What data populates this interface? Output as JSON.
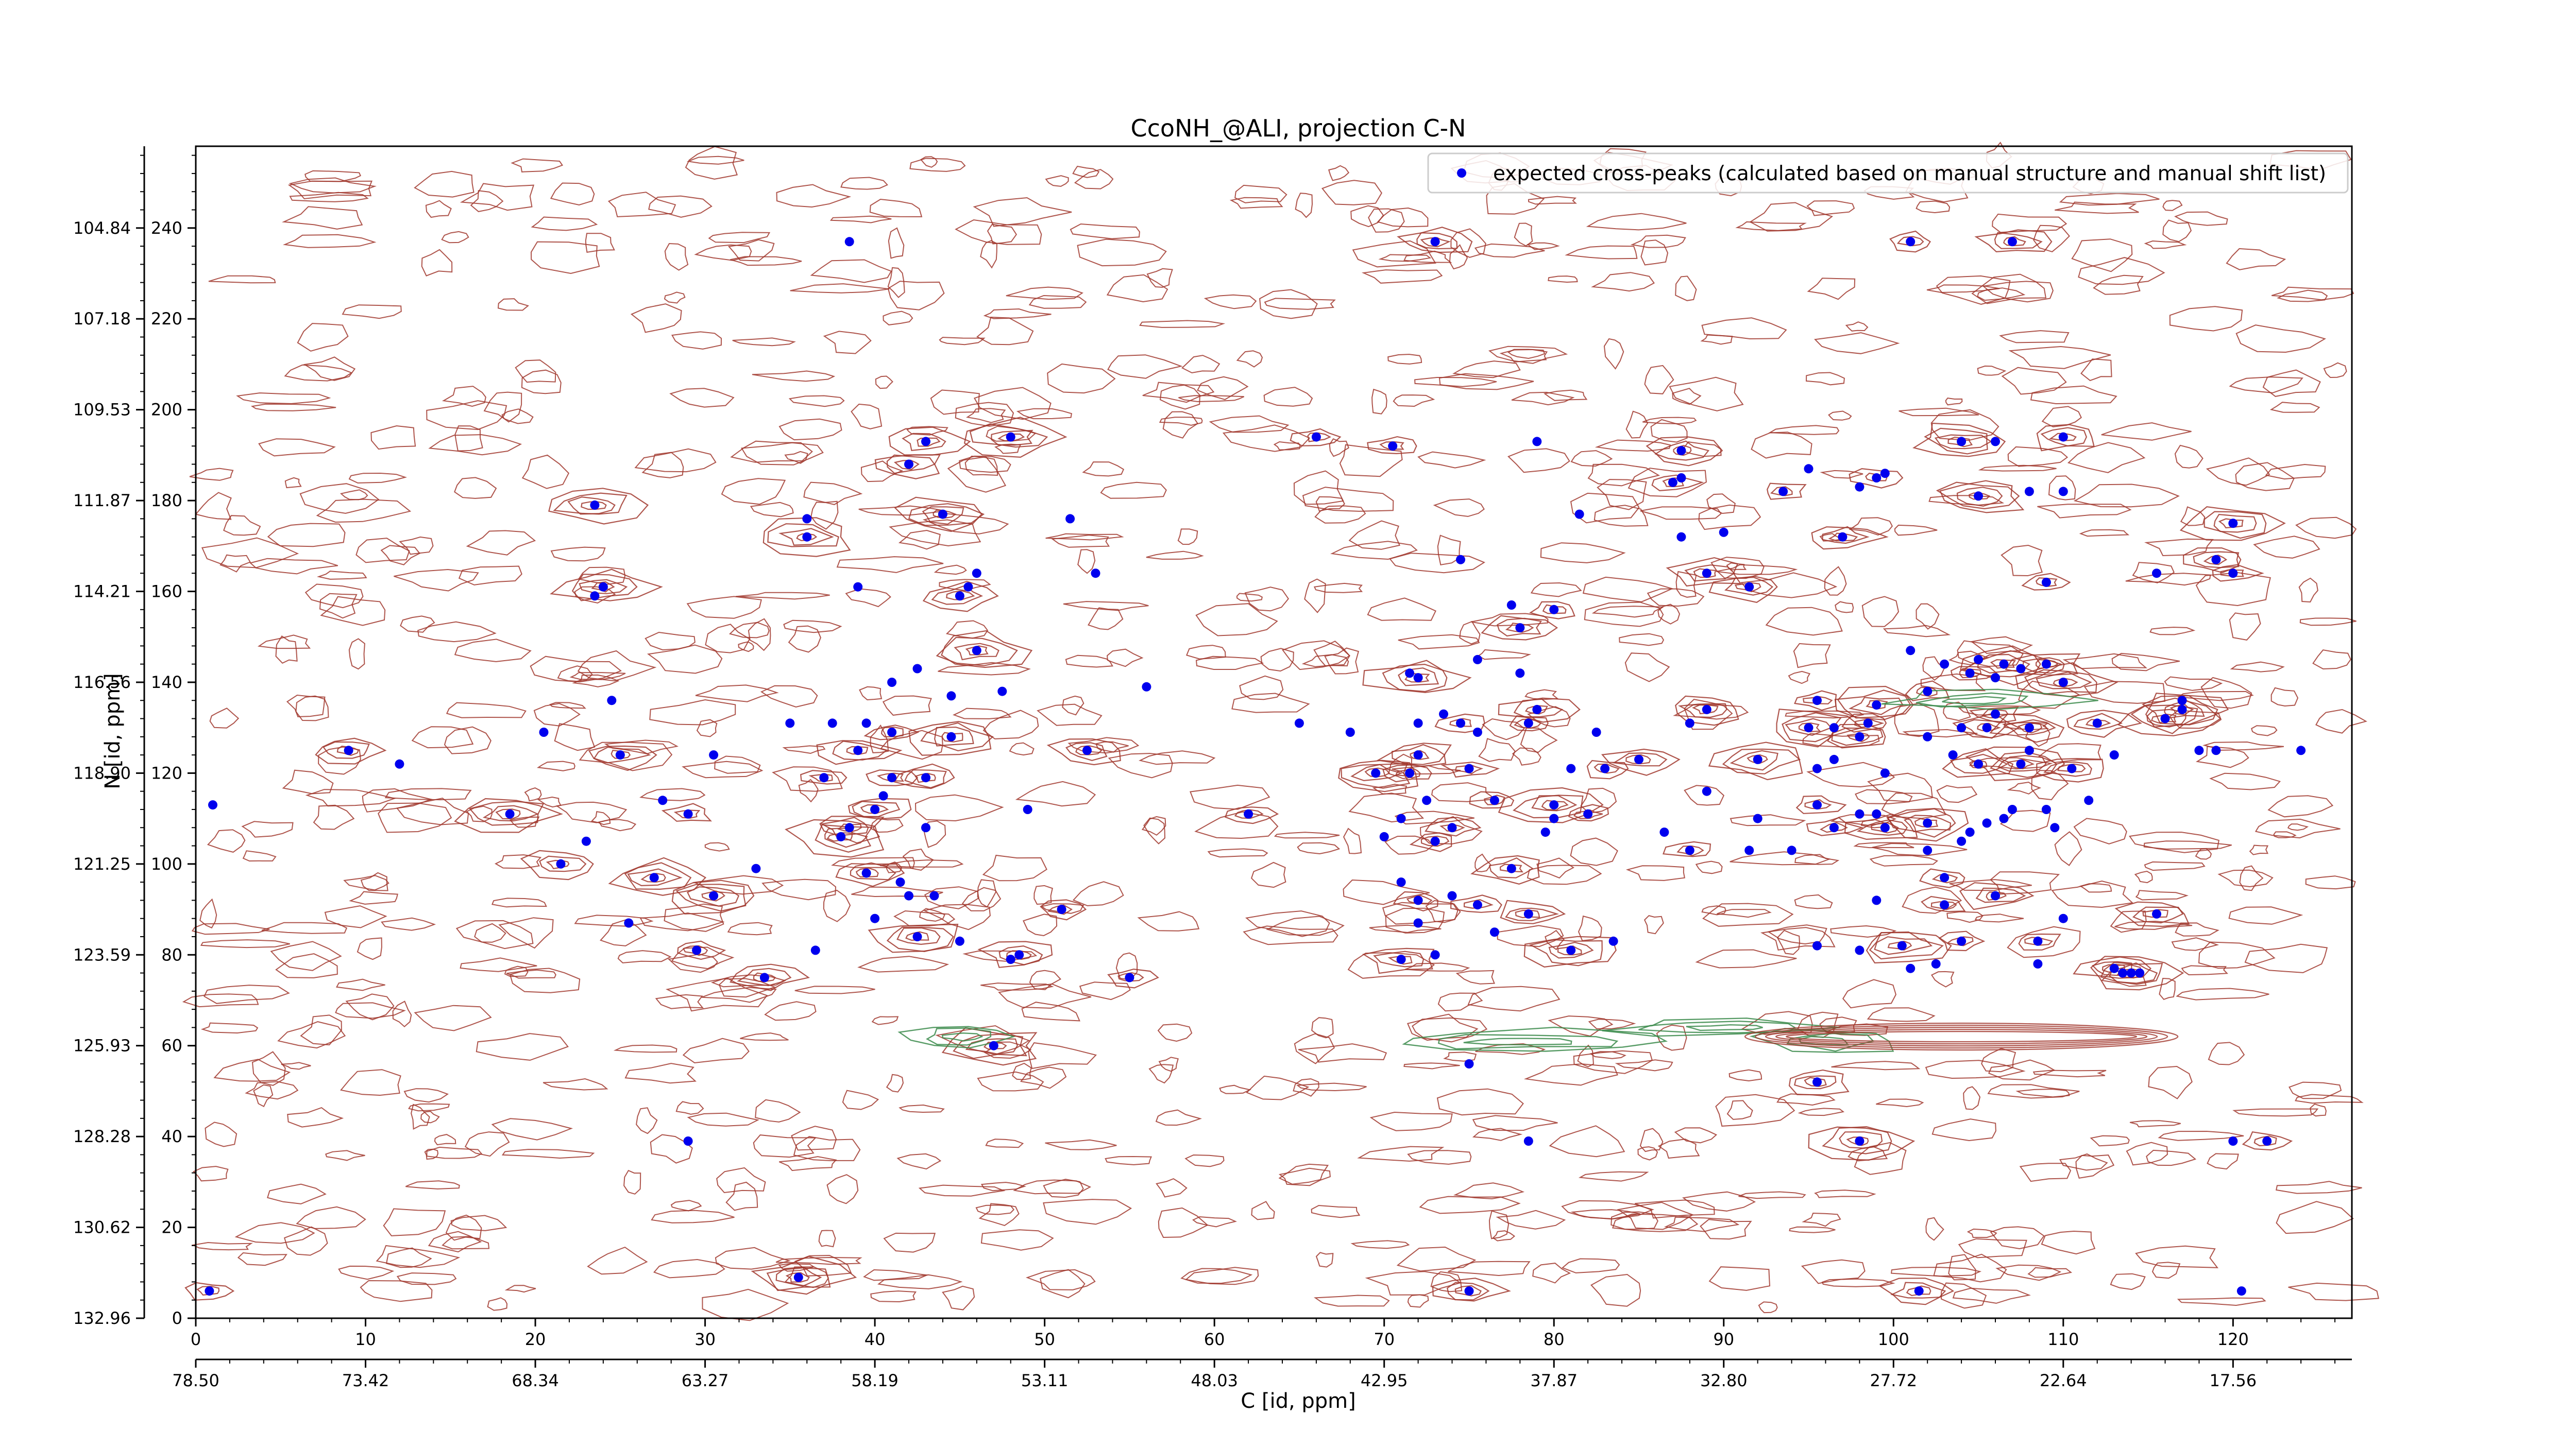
{
  "chart_data": {
    "type": "scatter",
    "title": "CcoNH_@ALI, projection C-N",
    "xlabel": "C [id, ppm]",
    "ylabel": "N [id, ppm]",
    "legend": {
      "placement": "top-right",
      "label": "expected cross-peaks (calculated based on manual structure and manual shift list)"
    },
    "grid": false,
    "colors": {
      "marker": "#0000ee",
      "contour_positive": "#a0362c",
      "contour_negative": "#3a8a4a"
    },
    "x_point_axis": {
      "range": [
        0,
        127
      ],
      "ticks": [
        0,
        10,
        20,
        30,
        40,
        50,
        60,
        70,
        80,
        90,
        100,
        110,
        120
      ],
      "tick_labels": [
        "0",
        "10",
        "20",
        "30",
        "40",
        "50",
        "60",
        "70",
        "80",
        "90",
        "100",
        "110",
        "120"
      ]
    },
    "x_ppm_axis": {
      "tick_labels": [
        "78.50",
        "73.42",
        "68.34",
        "63.27",
        "58.19",
        "53.11",
        "48.03",
        "42.95",
        "37.87",
        "32.80",
        "27.72",
        "22.64",
        "17.56"
      ]
    },
    "y_point_axis": {
      "range": [
        0,
        258
      ],
      "ticks": [
        0,
        20,
        40,
        60,
        80,
        100,
        120,
        140,
        160,
        180,
        200,
        220,
        240
      ],
      "tick_labels": [
        "0",
        "20",
        "40",
        "60",
        "80",
        "100",
        "120",
        "140",
        "160",
        "180",
        "200",
        "220",
        "240"
      ]
    },
    "y_ppm_axis": {
      "tick_labels": [
        "132.96",
        "130.62",
        "128.28",
        "125.93",
        "123.59",
        "121.25",
        "118.90",
        "116.56",
        "114.21",
        "111.87",
        "109.53",
        "107.18",
        "104.84"
      ]
    },
    "series": [
      {
        "name": "expected cross-peaks (calculated based on manual structure and manual shift list)",
        "points": [
          [
            0.8,
            6
          ],
          [
            1,
            113
          ],
          [
            9,
            125
          ],
          [
            12,
            122
          ],
          [
            18.5,
            111
          ],
          [
            20.5,
            129
          ],
          [
            21.5,
            100
          ],
          [
            23,
            105
          ],
          [
            23.5,
            179
          ],
          [
            23.5,
            159
          ],
          [
            24,
            161
          ],
          [
            24.5,
            136
          ],
          [
            25,
            124
          ],
          [
            25.5,
            87
          ],
          [
            27,
            97
          ],
          [
            27.5,
            114
          ],
          [
            29,
            111
          ],
          [
            29,
            39
          ],
          [
            29.5,
            81
          ],
          [
            30.5,
            124
          ],
          [
            30.5,
            93
          ],
          [
            33,
            99
          ],
          [
            33.5,
            75
          ],
          [
            35,
            131
          ],
          [
            35.5,
            9
          ],
          [
            36,
            176
          ],
          [
            36,
            172
          ],
          [
            36.5,
            81
          ],
          [
            37,
            119
          ],
          [
            37.5,
            131
          ],
          [
            38,
            106
          ],
          [
            38.5,
            237
          ],
          [
            38.5,
            108
          ],
          [
            39,
            161
          ],
          [
            39,
            125
          ],
          [
            39.5,
            131
          ],
          [
            39.5,
            98
          ],
          [
            40,
            88
          ],
          [
            40,
            112
          ],
          [
            40.5,
            115
          ],
          [
            41,
            129
          ],
          [
            41,
            140
          ],
          [
            41,
            119
          ],
          [
            41.5,
            96
          ],
          [
            42,
            188
          ],
          [
            42,
            93
          ],
          [
            42.5,
            84
          ],
          [
            42.5,
            143
          ],
          [
            43,
            193
          ],
          [
            43,
            108
          ],
          [
            43,
            119
          ],
          [
            43.5,
            93
          ],
          [
            44,
            177
          ],
          [
            44.5,
            137
          ],
          [
            44.5,
            128
          ],
          [
            45,
            83
          ],
          [
            45,
            159
          ],
          [
            45.5,
            161
          ],
          [
            46,
            147
          ],
          [
            46,
            164
          ],
          [
            47,
            60
          ],
          [
            47.5,
            138
          ],
          [
            48,
            194
          ],
          [
            48,
            79
          ],
          [
            48.5,
            80
          ],
          [
            49,
            112
          ],
          [
            51,
            90
          ],
          [
            51.5,
            176
          ],
          [
            52.5,
            125
          ],
          [
            53,
            164
          ],
          [
            55,
            75
          ],
          [
            56,
            139
          ],
          [
            62,
            111
          ],
          [
            65,
            131
          ],
          [
            66,
            194
          ],
          [
            68,
            129
          ],
          [
            69.5,
            120
          ],
          [
            70,
            106
          ],
          [
            70.5,
            192
          ],
          [
            71,
            110
          ],
          [
            71,
            79
          ],
          [
            71,
            96
          ],
          [
            71.5,
            120
          ],
          [
            71.5,
            142
          ],
          [
            72,
            141
          ],
          [
            72,
            87
          ],
          [
            72,
            92
          ],
          [
            72,
            131
          ],
          [
            72,
            124
          ],
          [
            72.5,
            114
          ],
          [
            73,
            105
          ],
          [
            73,
            80
          ],
          [
            73,
            237
          ],
          [
            73.5,
            133
          ],
          [
            74,
            108
          ],
          [
            74,
            93
          ],
          [
            74.5,
            131
          ],
          [
            74.5,
            167
          ],
          [
            75,
            121
          ],
          [
            75,
            56
          ],
          [
            75,
            6
          ],
          [
            75.5,
            145
          ],
          [
            75.5,
            91
          ],
          [
            75.5,
            129
          ],
          [
            76.5,
            114
          ],
          [
            76.5,
            85
          ],
          [
            77.5,
            99
          ],
          [
            77.5,
            157
          ],
          [
            78,
            152
          ],
          [
            78,
            142
          ],
          [
            78.5,
            131
          ],
          [
            78.5,
            39
          ],
          [
            78.5,
            89
          ],
          [
            79,
            193
          ],
          [
            79,
            134
          ],
          [
            79.5,
            107
          ],
          [
            80,
            156
          ],
          [
            80,
            110
          ],
          [
            80,
            113
          ],
          [
            81,
            121
          ],
          [
            81,
            81
          ],
          [
            81.5,
            177
          ],
          [
            82,
            111
          ],
          [
            82.5,
            129
          ],
          [
            83,
            121
          ],
          [
            83.5,
            83
          ],
          [
            85,
            123
          ],
          [
            86.5,
            107
          ],
          [
            87,
            184
          ],
          [
            87.5,
            185
          ],
          [
            87.5,
            191
          ],
          [
            87.5,
            172
          ],
          [
            88,
            103
          ],
          [
            88,
            131
          ],
          [
            89,
            164
          ],
          [
            89,
            116
          ],
          [
            89,
            134
          ],
          [
            90,
            173
          ],
          [
            91.5,
            161
          ],
          [
            91.5,
            103
          ],
          [
            92,
            123
          ],
          [
            92,
            110
          ],
          [
            93.5,
            182
          ],
          [
            94,
            103
          ],
          [
            95,
            130
          ],
          [
            95,
            187
          ],
          [
            95.5,
            113
          ],
          [
            95.5,
            121
          ],
          [
            95.5,
            136
          ],
          [
            95.5,
            82
          ],
          [
            95.5,
            52
          ],
          [
            96.5,
            123
          ],
          [
            96.5,
            108
          ],
          [
            96.5,
            130
          ],
          [
            97,
            172
          ],
          [
            98,
            81
          ],
          [
            98,
            39
          ],
          [
            98,
            111
          ],
          [
            98,
            128
          ],
          [
            98,
            183
          ],
          [
            98.5,
            131
          ],
          [
            99,
            111
          ],
          [
            99,
            135
          ],
          [
            99,
            92
          ],
          [
            99,
            185
          ],
          [
            99.5,
            186
          ],
          [
            99.5,
            108
          ],
          [
            99.5,
            120
          ],
          [
            100.5,
            82
          ],
          [
            101,
            147
          ],
          [
            101,
            237
          ],
          [
            101,
            77
          ],
          [
            101.5,
            6
          ],
          [
            102,
            128
          ],
          [
            102,
            138
          ],
          [
            102,
            103
          ],
          [
            102,
            109
          ],
          [
            102.5,
            78
          ],
          [
            103,
            91
          ],
          [
            103,
            144
          ],
          [
            103,
            97
          ],
          [
            103.5,
            124
          ],
          [
            104,
            193
          ],
          [
            104,
            130
          ],
          [
            104,
            83
          ],
          [
            104,
            105
          ],
          [
            104.5,
            142
          ],
          [
            104.5,
            107
          ],
          [
            105,
            181
          ],
          [
            105,
            145
          ],
          [
            105,
            122
          ],
          [
            105.5,
            109
          ],
          [
            105.5,
            130
          ],
          [
            106,
            141
          ],
          [
            106,
            93
          ],
          [
            106,
            193
          ],
          [
            106,
            133
          ],
          [
            106.5,
            110
          ],
          [
            106.5,
            144
          ],
          [
            107,
            112
          ],
          [
            107,
            237
          ],
          [
            107.5,
            143
          ],
          [
            107.5,
            122
          ],
          [
            108,
            125
          ],
          [
            108,
            130
          ],
          [
            108,
            182
          ],
          [
            108.5,
            83
          ],
          [
            108.5,
            78
          ],
          [
            109,
            144
          ],
          [
            109,
            112
          ],
          [
            109,
            162
          ],
          [
            109.5,
            108
          ],
          [
            110,
            194
          ],
          [
            110,
            182
          ],
          [
            110,
            140
          ],
          [
            110,
            88
          ],
          [
            110.5,
            121
          ],
          [
            111.5,
            114
          ],
          [
            112,
            131
          ],
          [
            113,
            124
          ],
          [
            113,
            77
          ],
          [
            113.5,
            76
          ],
          [
            114,
            76
          ],
          [
            114.5,
            76
          ],
          [
            116,
            132
          ],
          [
            115.5,
            164
          ],
          [
            115.5,
            89
          ],
          [
            117,
            136
          ],
          [
            117,
            134
          ],
          [
            118,
            125
          ],
          [
            119,
            167
          ],
          [
            119,
            125
          ],
          [
            120,
            164
          ],
          [
            120,
            39
          ],
          [
            120,
            175
          ],
          [
            120.5,
            6
          ],
          [
            122,
            39
          ],
          [
            124,
            125
          ]
        ]
      }
    ]
  }
}
